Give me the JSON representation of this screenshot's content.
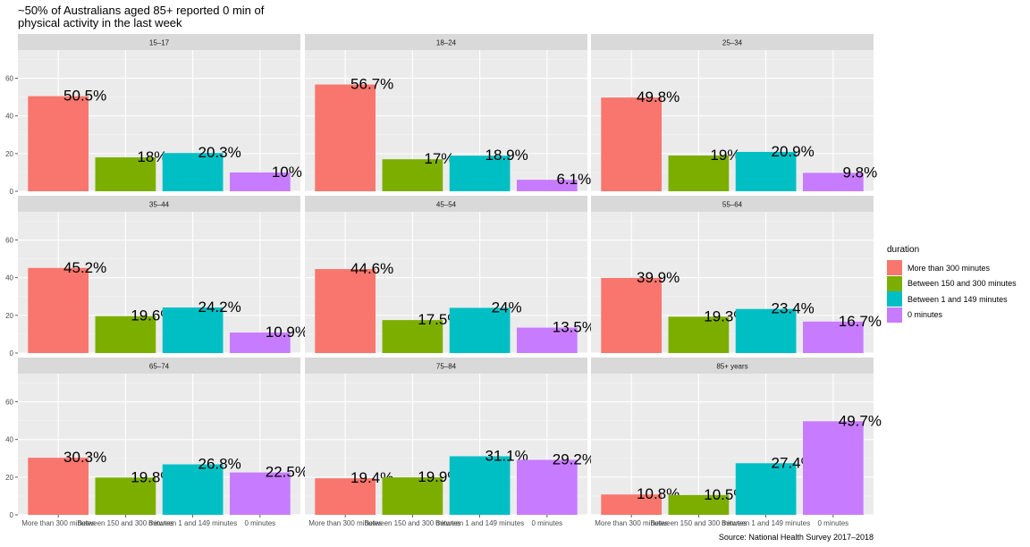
{
  "chart_data": {
    "type": "bar",
    "title": "~50% of Australians aged 85+ reported 0 min of\nphysical activity in the last week",
    "caption": "Source: National Health Survey 2017–2018",
    "legend_title": "duration",
    "legend_position": "right",
    "categories": [
      "More than 300 minutes",
      "Between 150 and 300 minutes",
      "Between 1 and 149 minutes",
      "0 minutes"
    ],
    "colors": [
      "#F8766D",
      "#7CAE00",
      "#00BFC4",
      "#C77CFF"
    ],
    "ylim": [
      0,
      75
    ],
    "yticks": [
      0,
      20,
      40,
      60
    ],
    "grid": true,
    "facets": [
      {
        "label": "15–17",
        "values": [
          50.5,
          18,
          20.3,
          10
        ],
        "data_labels": [
          "50.5%",
          "18%",
          "20.3%",
          "10%"
        ]
      },
      {
        "label": "18–24",
        "values": [
          56.7,
          17,
          18.9,
          6.1
        ],
        "data_labels": [
          "56.7%",
          "17%",
          "18.9%",
          "6.1%"
        ]
      },
      {
        "label": "25–34",
        "values": [
          49.8,
          19,
          20.9,
          9.8
        ],
        "data_labels": [
          "49.8%",
          "19%",
          "20.9%",
          "9.8%"
        ]
      },
      {
        "label": "35–44",
        "values": [
          45.2,
          19.6,
          24.2,
          10.9
        ],
        "data_labels": [
          "45.2%",
          "19.6%",
          "24.2%",
          "10.9%"
        ]
      },
      {
        "label": "45–54",
        "values": [
          44.6,
          17.5,
          24,
          13.5
        ],
        "data_labels": [
          "44.6%",
          "17.5%",
          "24%",
          "13.5%"
        ]
      },
      {
        "label": "55–64",
        "values": [
          39.9,
          19.3,
          23.4,
          16.7
        ],
        "data_labels": [
          "39.9%",
          "19.3%",
          "23.4%",
          "16.7%"
        ]
      },
      {
        "label": "65–74",
        "values": [
          30.3,
          19.8,
          26.8,
          22.5
        ],
        "data_labels": [
          "30.3%",
          "19.8%",
          "26.8%",
          "22.5%"
        ]
      },
      {
        "label": "75–84",
        "values": [
          19.4,
          19.9,
          31.1,
          29.2
        ],
        "data_labels": [
          "19.4%",
          "19.9%",
          "31.1%",
          "29.2%"
        ]
      },
      {
        "label": "85+ years",
        "values": [
          10.8,
          10.5,
          27.4,
          49.7
        ],
        "data_labels": [
          "10.8%",
          "10.5%",
          "27.4%",
          "49.7%"
        ]
      }
    ]
  }
}
